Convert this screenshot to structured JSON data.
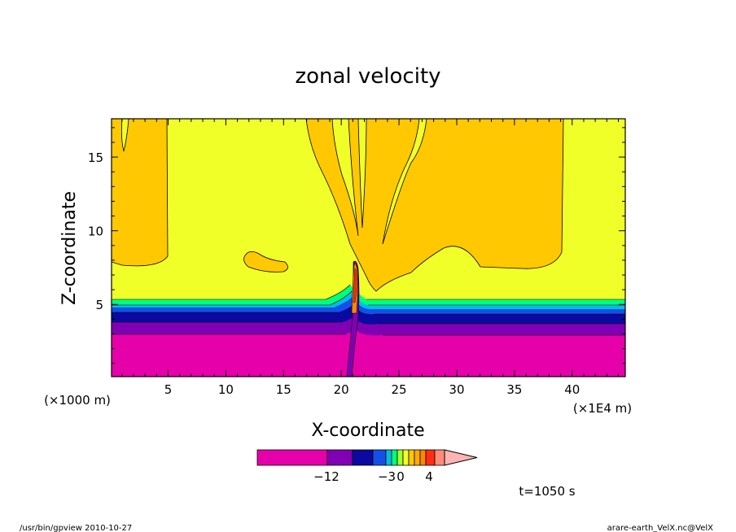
{
  "chart_data": {
    "type": "heatmap",
    "title": "zonal velocity",
    "xlabel": "X-coordinate",
    "ylabel": "Z-coordinate",
    "x_unit_left": "(×1000 m)",
    "x_unit_right": "(×1E4 m)",
    "xlim": [
      0.1,
      44.6
    ],
    "ylim": [
      0.1,
      17.6
    ],
    "x_ticks": [
      "5",
      "10",
      "15",
      "20",
      "25",
      "30",
      "35",
      "40"
    ],
    "x_tick_values": [
      5,
      10,
      15,
      20,
      25,
      30,
      35,
      40
    ],
    "y_ticks": [
      "5",
      "10",
      "15"
    ],
    "y_tick_values": [
      5,
      10,
      15
    ],
    "colorbar": {
      "colors": [
        "#e600aa",
        "#8000b4",
        "#0a0aa0",
        "#1450e6",
        "#00bee6",
        "#00ff7a",
        "#a0ff32",
        "#f0ff28",
        "#ffc800",
        "#ffaa00",
        "#ff8700",
        "#ff2d14",
        "#ff8c78",
        "#ffb4b4"
      ],
      "tick_labels": [
        "−12",
        "−3",
        "0",
        "4"
      ]
    },
    "annotation": "t=1050 s"
  },
  "footer": {
    "left": "/usr/bin/gpview  2010-10-27",
    "right": "arare-earth_VelX.nc@VelX"
  }
}
